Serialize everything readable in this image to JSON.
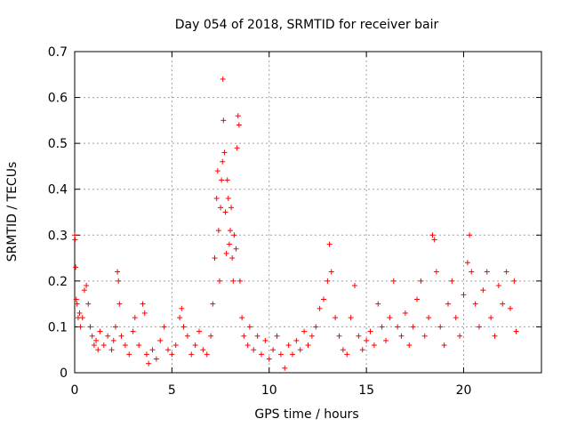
{
  "chart_data": {
    "type": "scatter",
    "title": "Day 054 of 2018, SRMTID for receiver bair",
    "xlabel": "GPS time / hours",
    "ylabel": "SRMTID / TECUs",
    "xlim": [
      0,
      24
    ],
    "ylim": [
      0,
      0.7
    ],
    "x_ticks": [
      0,
      5,
      10,
      15,
      20
    ],
    "y_ticks": [
      0,
      0.1,
      0.2,
      0.3,
      0.4,
      0.5,
      0.6,
      0.7
    ],
    "x_tick_labels": [
      "0",
      "5",
      "10",
      "15",
      "20"
    ],
    "y_tick_labels": [
      "0",
      "0.1",
      "0.2",
      "0.3",
      "0.4",
      "0.5",
      "0.6",
      "0.7"
    ],
    "grid": true,
    "marker": "+",
    "series": [
      {
        "name": "SRMTID",
        "color": "#ff0000",
        "points": [
          [
            0.0,
            0.3
          ],
          [
            0.02,
            0.29
          ],
          [
            0.05,
            0.23
          ],
          [
            0.08,
            0.16
          ],
          [
            0.12,
            0.15
          ],
          [
            0.18,
            0.12
          ],
          [
            0.25,
            0.13
          ],
          [
            0.3,
            0.1
          ],
          [
            0.4,
            0.12
          ],
          [
            0.5,
            0.18
          ],
          [
            0.6,
            0.19
          ],
          [
            0.7,
            0.15
          ],
          [
            0.8,
            0.1
          ],
          [
            0.9,
            0.08
          ],
          [
            1.0,
            0.06
          ],
          [
            1.1,
            0.07
          ],
          [
            1.2,
            0.05
          ],
          [
            1.3,
            0.09
          ],
          [
            1.5,
            0.06
          ],
          [
            1.7,
            0.08
          ],
          [
            1.9,
            0.05
          ],
          [
            2.0,
            0.07
          ],
          [
            2.1,
            0.1
          ],
          [
            2.2,
            0.22
          ],
          [
            2.25,
            0.2
          ],
          [
            2.3,
            0.15
          ],
          [
            2.4,
            0.08
          ],
          [
            2.6,
            0.06
          ],
          [
            2.8,
            0.04
          ],
          [
            3.0,
            0.09
          ],
          [
            3.1,
            0.12
          ],
          [
            3.3,
            0.06
          ],
          [
            3.5,
            0.15
          ],
          [
            3.6,
            0.13
          ],
          [
            3.7,
            0.04
          ],
          [
            3.8,
            0.02
          ],
          [
            4.0,
            0.05
          ],
          [
            4.2,
            0.03
          ],
          [
            4.4,
            0.07
          ],
          [
            4.6,
            0.1
          ],
          [
            4.8,
            0.05
          ],
          [
            5.0,
            0.04
          ],
          [
            5.2,
            0.06
          ],
          [
            5.4,
            0.12
          ],
          [
            5.5,
            0.14
          ],
          [
            5.6,
            0.1
          ],
          [
            5.8,
            0.08
          ],
          [
            6.0,
            0.04
          ],
          [
            6.2,
            0.06
          ],
          [
            6.4,
            0.09
          ],
          [
            6.6,
            0.05
          ],
          [
            6.8,
            0.04
          ],
          [
            7.0,
            0.08
          ],
          [
            7.1,
            0.15
          ],
          [
            7.2,
            0.25
          ],
          [
            7.3,
            0.38
          ],
          [
            7.35,
            0.44
          ],
          [
            7.4,
            0.31
          ],
          [
            7.45,
            0.2
          ],
          [
            7.5,
            0.36
          ],
          [
            7.55,
            0.42
          ],
          [
            7.6,
            0.46
          ],
          [
            7.62,
            0.64
          ],
          [
            7.65,
            0.55
          ],
          [
            7.7,
            0.48
          ],
          [
            7.75,
            0.35
          ],
          [
            7.8,
            0.26
          ],
          [
            7.85,
            0.42
          ],
          [
            7.9,
            0.38
          ],
          [
            7.95,
            0.28
          ],
          [
            8.0,
            0.31
          ],
          [
            8.05,
            0.36
          ],
          [
            8.1,
            0.25
          ],
          [
            8.15,
            0.2
          ],
          [
            8.2,
            0.3
          ],
          [
            8.3,
            0.27
          ],
          [
            8.35,
            0.49
          ],
          [
            8.4,
            0.56
          ],
          [
            8.45,
            0.54
          ],
          [
            8.5,
            0.2
          ],
          [
            8.6,
            0.12
          ],
          [
            8.7,
            0.08
          ],
          [
            8.9,
            0.06
          ],
          [
            9.0,
            0.1
          ],
          [
            9.2,
            0.05
          ],
          [
            9.4,
            0.08
          ],
          [
            9.6,
            0.04
          ],
          [
            9.8,
            0.07
          ],
          [
            10.0,
            0.03
          ],
          [
            10.2,
            0.05
          ],
          [
            10.4,
            0.08
          ],
          [
            10.6,
            0.04
          ],
          [
            10.8,
            0.01
          ],
          [
            11.0,
            0.06
          ],
          [
            11.2,
            0.04
          ],
          [
            11.4,
            0.07
          ],
          [
            11.6,
            0.05
          ],
          [
            11.8,
            0.09
          ],
          [
            12.0,
            0.06
          ],
          [
            12.2,
            0.08
          ],
          [
            12.4,
            0.1
          ],
          [
            12.6,
            0.14
          ],
          [
            12.8,
            0.16
          ],
          [
            13.0,
            0.2
          ],
          [
            13.1,
            0.28
          ],
          [
            13.2,
            0.22
          ],
          [
            13.4,
            0.12
          ],
          [
            13.6,
            0.08
          ],
          [
            13.8,
            0.05
          ],
          [
            14.0,
            0.04
          ],
          [
            14.2,
            0.12
          ],
          [
            14.4,
            0.19
          ],
          [
            14.6,
            0.08
          ],
          [
            14.8,
            0.05
          ],
          [
            15.0,
            0.07
          ],
          [
            15.2,
            0.09
          ],
          [
            15.4,
            0.06
          ],
          [
            15.6,
            0.15
          ],
          [
            15.8,
            0.1
          ],
          [
            16.0,
            0.07
          ],
          [
            16.2,
            0.12
          ],
          [
            16.4,
            0.2
          ],
          [
            16.6,
            0.1
          ],
          [
            16.8,
            0.08
          ],
          [
            17.0,
            0.13
          ],
          [
            17.2,
            0.06
          ],
          [
            17.4,
            0.1
          ],
          [
            17.6,
            0.16
          ],
          [
            17.8,
            0.2
          ],
          [
            18.0,
            0.08
          ],
          [
            18.2,
            0.12
          ],
          [
            18.4,
            0.3
          ],
          [
            18.5,
            0.29
          ],
          [
            18.6,
            0.22
          ],
          [
            18.8,
            0.1
          ],
          [
            19.0,
            0.06
          ],
          [
            19.2,
            0.15
          ],
          [
            19.4,
            0.2
          ],
          [
            19.6,
            0.12
          ],
          [
            19.8,
            0.08
          ],
          [
            20.0,
            0.17
          ],
          [
            20.2,
            0.24
          ],
          [
            20.3,
            0.3
          ],
          [
            20.4,
            0.22
          ],
          [
            20.6,
            0.15
          ],
          [
            20.8,
            0.1
          ],
          [
            21.0,
            0.18
          ],
          [
            21.2,
            0.22
          ],
          [
            21.4,
            0.12
          ],
          [
            21.6,
            0.08
          ],
          [
            21.8,
            0.19
          ],
          [
            22.0,
            0.15
          ],
          [
            22.2,
            0.22
          ],
          [
            22.4,
            0.14
          ],
          [
            22.6,
            0.2
          ],
          [
            22.7,
            0.09
          ]
        ]
      }
    ]
  }
}
